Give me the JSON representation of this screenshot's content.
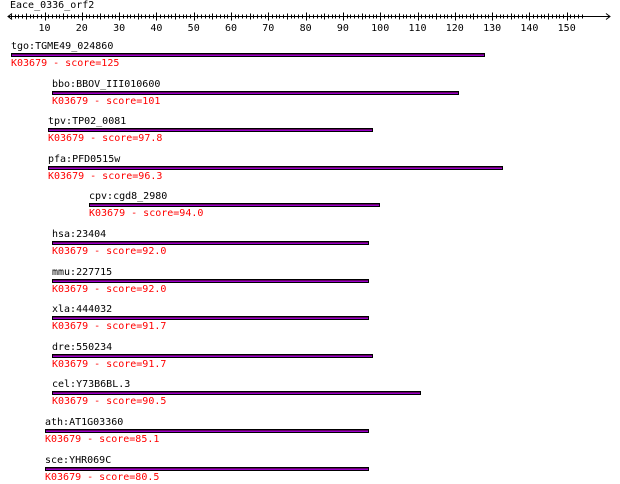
{
  "query": {
    "name": "Eace_0336_orf2",
    "length": 154
  },
  "ruler": {
    "ticks": [
      10,
      20,
      30,
      40,
      50,
      60,
      70,
      80,
      90,
      100,
      110,
      120,
      130,
      140,
      150
    ]
  },
  "hits": [
    {
      "name": "tgo:TGME49_024860",
      "ko": "K03679",
      "score_label": "score=125",
      "start": 1,
      "end": 128
    },
    {
      "name": "bbo:BBOV_III010600",
      "ko": "K03679",
      "score_label": "score=101",
      "start": 12,
      "end": 121
    },
    {
      "name": "tpv:TP02_0081",
      "ko": "K03679",
      "score_label": "score=97.8",
      "start": 11,
      "end": 98
    },
    {
      "name": "pfa:PFD0515w",
      "ko": "K03679",
      "score_label": "score=96.3",
      "start": 11,
      "end": 133
    },
    {
      "name": "cpv:cgd8_2980",
      "ko": "K03679",
      "score_label": "score=94.0",
      "start": 22,
      "end": 100
    },
    {
      "name": "hsa:23404",
      "ko": "K03679",
      "score_label": "score=92.0",
      "start": 12,
      "end": 97
    },
    {
      "name": "mmu:227715",
      "ko": "K03679",
      "score_label": "score=92.0",
      "start": 12,
      "end": 97
    },
    {
      "name": "xla:444032",
      "ko": "K03679",
      "score_label": "score=91.7",
      "start": 12,
      "end": 97
    },
    {
      "name": "dre:550234",
      "ko": "K03679",
      "score_label": "score=91.7",
      "start": 12,
      "end": 98
    },
    {
      "name": "cel:Y73B6BL.3",
      "ko": "K03679",
      "score_label": "score=90.5",
      "start": 12,
      "end": 111
    },
    {
      "name": "ath:AT1G03360",
      "ko": "K03679",
      "score_label": "score=85.1",
      "start": 10,
      "end": 97
    },
    {
      "name": "sce:YHR069C",
      "ko": "K03679",
      "score_label": "score=80.5",
      "start": 10,
      "end": 97
    }
  ]
}
